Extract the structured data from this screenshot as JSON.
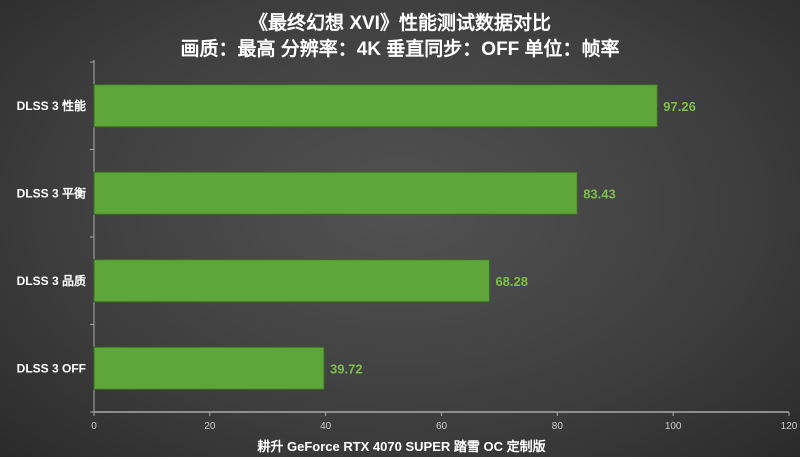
{
  "chart_data": {
    "type": "bar",
    "orientation": "horizontal",
    "title": "《最终幻想 XVI》性能测试数据对比",
    "subtitle": "画质：最高 分辨率：4K 垂直同步：OFF 单位：帧率",
    "categories": [
      "DLSS 3 性能",
      "DLSS 3 平衡",
      "DLSS 3 品质",
      "DLSS 3 OFF"
    ],
    "values": [
      97.26,
      83.43,
      68.28,
      39.72
    ],
    "xlabel": "耕升 GeForce RTX 4070 SUPER 踏雪 OC 定制版",
    "ylabel": "",
    "xlim": [
      0,
      120
    ],
    "xticks": [
      0,
      20,
      40,
      60,
      80,
      100,
      120
    ],
    "grid": false,
    "bar_color": "#5ea63a",
    "label_color": "#7cbf4a"
  }
}
